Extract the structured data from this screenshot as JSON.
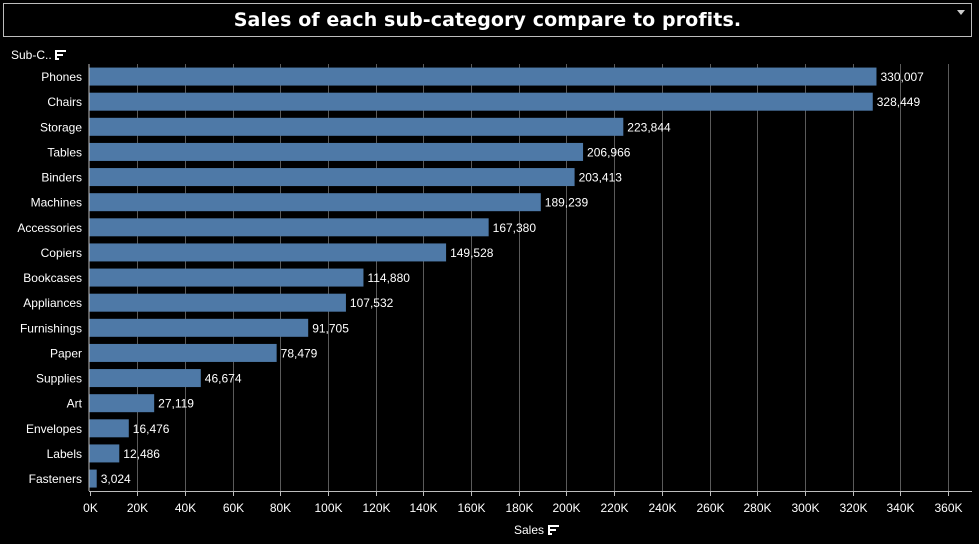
{
  "title": "Sales of each sub-category compare to profits.",
  "row_header": "Sub-C..",
  "colors": {
    "background": "#000000",
    "bar": "#4e79a7",
    "grid": "#5a5a5a",
    "text": "#ffffff"
  },
  "icons": {
    "sort": "sort-descending-icon",
    "menu": "dropdown-arrow-icon"
  },
  "chart_data": {
    "type": "bar",
    "orientation": "horizontal",
    "title": "Sales of each sub-category compare to profits.",
    "xlabel": "Sales",
    "ylabel": "Sub-C..",
    "categories": [
      "Phones",
      "Chairs",
      "Storage",
      "Tables",
      "Binders",
      "Machines",
      "Accessories",
      "Copiers",
      "Bookcases",
      "Appliances",
      "Furnishings",
      "Paper",
      "Supplies",
      "Art",
      "Envelopes",
      "Labels",
      "Fasteners"
    ],
    "values": [
      330007,
      328449,
      223844,
      206966,
      203413,
      189239,
      167380,
      149528,
      114880,
      107532,
      91705,
      78479,
      46674,
      27119,
      16476,
      12486,
      3024
    ],
    "data_labels": [
      "330,007",
      "328,449",
      "223,844",
      "206,966",
      "203,413",
      "189,239",
      "167,380",
      "149,528",
      "114,880",
      "107,532",
      "91,705",
      "78,479",
      "46,674",
      "27,119",
      "16,476",
      "12,486",
      "3,024"
    ],
    "xlim": [
      0,
      360000
    ],
    "xticks": [
      0,
      20000,
      40000,
      60000,
      80000,
      100000,
      120000,
      140000,
      160000,
      180000,
      200000,
      220000,
      240000,
      260000,
      280000,
      300000,
      320000,
      340000,
      360000
    ],
    "xtick_labels": [
      "0K",
      "20K",
      "40K",
      "60K",
      "80K",
      "100K",
      "120K",
      "140K",
      "160K",
      "180K",
      "200K",
      "220K",
      "240K",
      "260K",
      "280K",
      "300K",
      "320K",
      "340K",
      "360K"
    ],
    "grid": true,
    "sorted": "descending"
  }
}
